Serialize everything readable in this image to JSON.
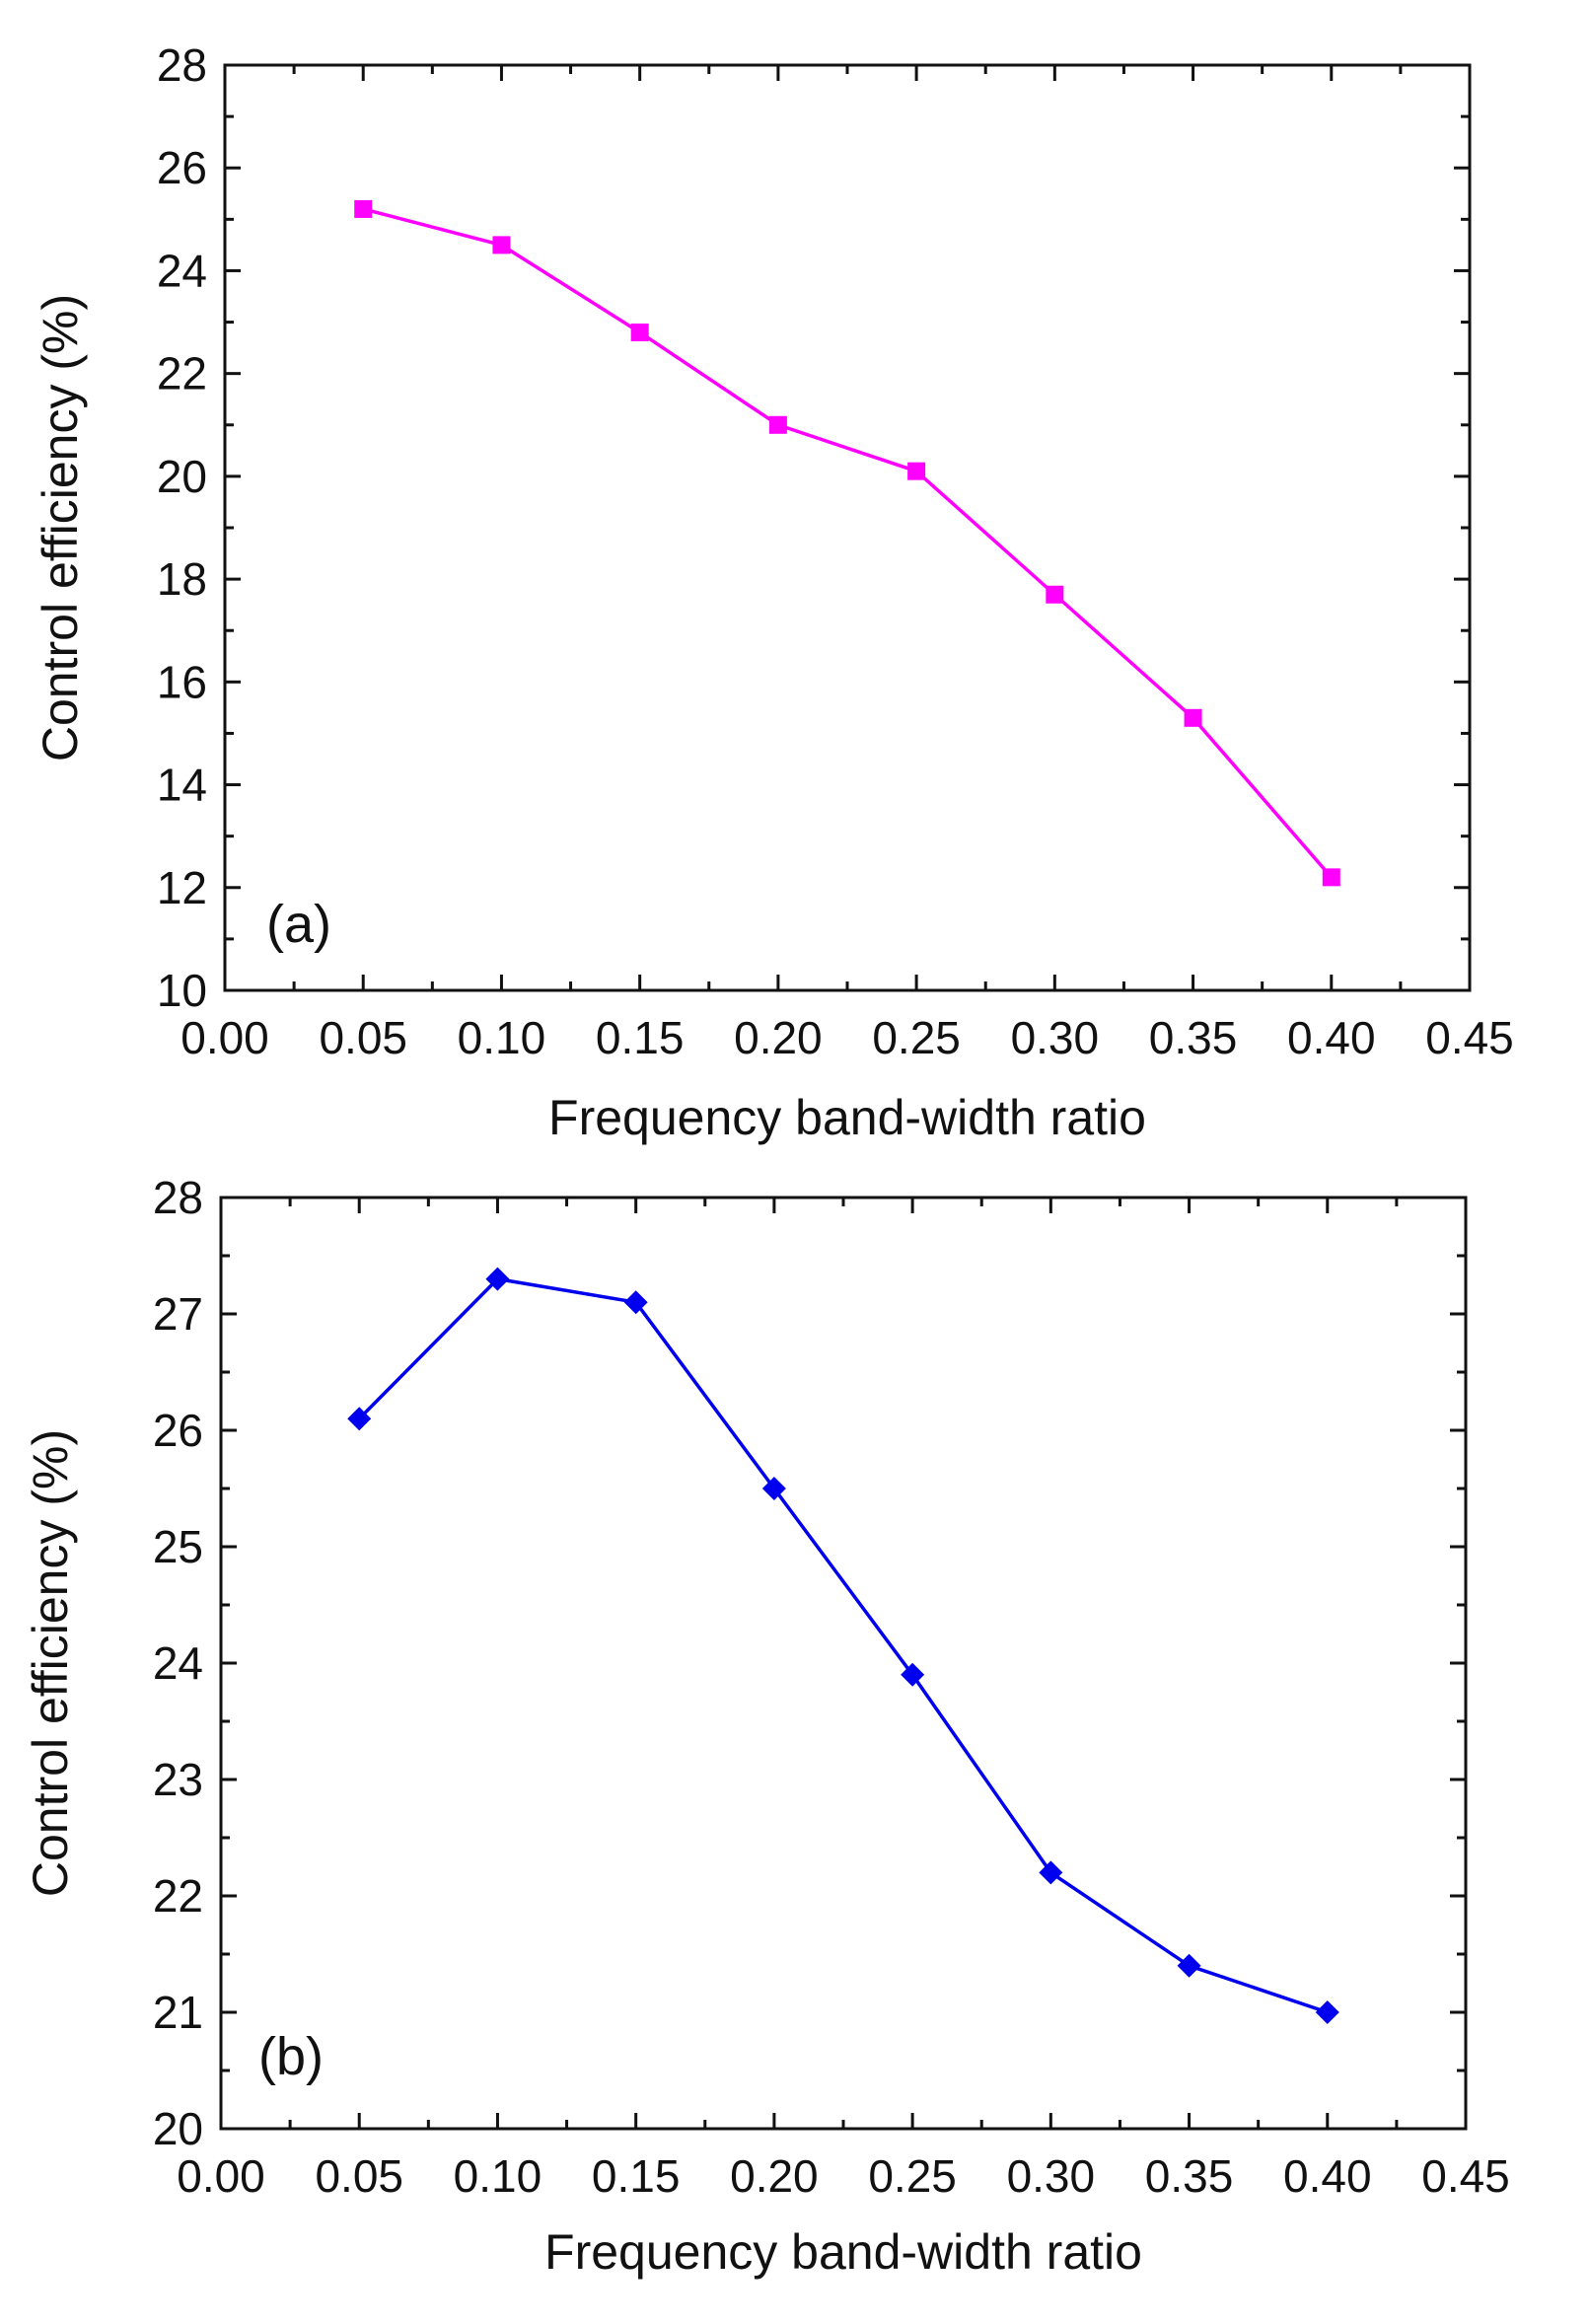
{
  "chart_data": [
    {
      "type": "line",
      "panel_label": "(a)",
      "title": "",
      "xlabel": "Frequency band-width ratio",
      "ylabel": "Control efficiency (%)",
      "xlim": [
        0.0,
        0.45
      ],
      "ylim": [
        10,
        28
      ],
      "x_ticks": [
        0.0,
        0.05,
        0.1,
        0.15,
        0.2,
        0.25,
        0.3,
        0.35,
        0.4,
        0.45
      ],
      "x_tick_labels": [
        "0.00",
        "0.05",
        "0.10",
        "0.15",
        "0.20",
        "0.25",
        "0.30",
        "0.35",
        "0.40",
        "0.45"
      ],
      "y_ticks": [
        10,
        12,
        14,
        16,
        18,
        20,
        22,
        24,
        26,
        28
      ],
      "y_tick_labels": [
        "10",
        "12",
        "14",
        "16",
        "18",
        "20",
        "22",
        "24",
        "26",
        "28"
      ],
      "grid": false,
      "series": [
        {
          "name": "(a)",
          "color": "#ff00ff",
          "marker": "square",
          "x": [
            0.05,
            0.1,
            0.15,
            0.2,
            0.25,
            0.3,
            0.35,
            0.4
          ],
          "values": [
            25.2,
            24.5,
            22.8,
            21.0,
            20.1,
            17.7,
            15.3,
            12.2
          ]
        }
      ]
    },
    {
      "type": "line",
      "panel_label": "(b)",
      "title": "",
      "xlabel": "Frequency band-width ratio",
      "ylabel": "Control efficiency (%)",
      "xlim": [
        0.0,
        0.45
      ],
      "ylim": [
        20,
        28
      ],
      "x_ticks": [
        0.0,
        0.05,
        0.1,
        0.15,
        0.2,
        0.25,
        0.3,
        0.35,
        0.4,
        0.45
      ],
      "x_tick_labels": [
        "0.00",
        "0.05",
        "0.10",
        "0.15",
        "0.20",
        "0.25",
        "0.30",
        "0.35",
        "0.40",
        "0.45"
      ],
      "y_ticks": [
        20,
        21,
        22,
        23,
        24,
        25,
        26,
        27,
        28
      ],
      "y_tick_labels": [
        "20",
        "21",
        "22",
        "23",
        "24",
        "25",
        "26",
        "27",
        "28"
      ],
      "grid": false,
      "series": [
        {
          "name": "(b)",
          "color": "#0000ee",
          "marker": "diamond",
          "x": [
            0.05,
            0.1,
            0.15,
            0.2,
            0.25,
            0.3,
            0.35,
            0.4
          ],
          "values": [
            26.1,
            27.3,
            27.1,
            25.5,
            23.9,
            22.2,
            21.4,
            21.0
          ]
        }
      ]
    }
  ]
}
